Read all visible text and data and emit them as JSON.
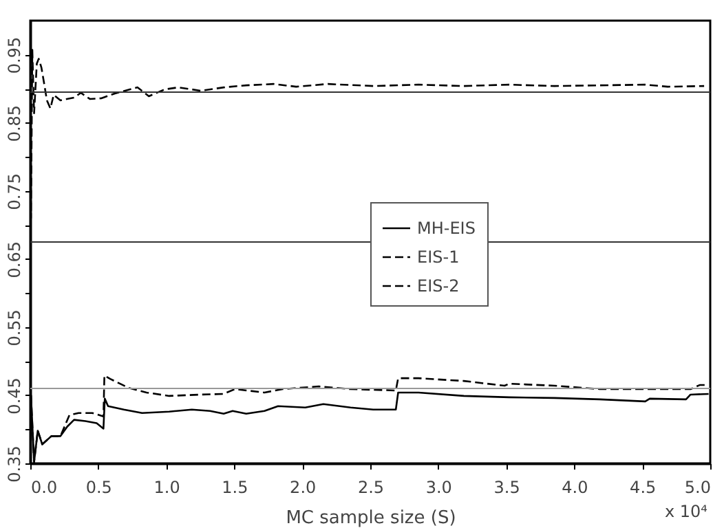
{
  "chart_data": {
    "type": "line",
    "xlabel": "MC sample size (S)",
    "annotations": [
      "x 10⁴"
    ],
    "xlim": [
      0,
      5
    ],
    "ylim": [
      0.35,
      1.0
    ],
    "xticks": [
      {
        "value": 0,
        "label": "0.0"
      },
      0.5,
      {
        "value": 1,
        "label": "1.0"
      },
      1.5,
      {
        "value": 2,
        "label": "2.0"
      },
      2.5,
      {
        "value": 3,
        "label": "3.0"
      },
      3.5,
      {
        "value": 4,
        "label": "4.0"
      },
      4.5,
      {
        "value": 5,
        "label": "5.0"
      }
    ],
    "yticks": [
      0.35,
      {
        "value": 0.4,
        "label": null
      },
      0.45,
      {
        "value": 0.5,
        "label": null
      },
      0.55,
      {
        "value": 0.6,
        "label": null
      },
      0.65,
      {
        "value": 0.7,
        "label": null
      },
      0.75,
      {
        "value": 0.8,
        "label": null
      },
      0.85,
      {
        "value": 0.9,
        "label": null
      },
      0.95
    ],
    "grid": false,
    "legend": "center",
    "marker": "none",
    "ref_lines": [
      {
        "axis": "y",
        "value": 0.895,
        "color": "#333333"
      },
      {
        "axis": "y",
        "value": 0.675,
        "color": "#333333"
      },
      {
        "axis": "y",
        "value": 0.46,
        "color": "#999999"
      }
    ],
    "series": [
      {
        "name": "MH-EIS",
        "color": "#000000",
        "line_style": "solid",
        "x": [
          0.005,
          0.028,
          0.055,
          0.088,
          0.155,
          0.222,
          0.272,
          0.322,
          0.405,
          0.488,
          0.538,
          0.548,
          0.572,
          0.688,
          0.822,
          1.022,
          1.188,
          1.322,
          1.422,
          1.488,
          1.588,
          1.722,
          1.822,
          2.022,
          2.155,
          2.355,
          2.522,
          2.688,
          2.705,
          2.855,
          3.188,
          3.522,
          3.855,
          4.188,
          4.522,
          4.555,
          4.822,
          4.855,
          4.988
        ],
        "values": [
          0.45,
          0.352,
          0.398,
          0.378,
          0.39,
          0.39,
          0.404,
          0.414,
          0.412,
          0.409,
          0.401,
          0.445,
          0.434,
          0.429,
          0.424,
          0.426,
          0.429,
          0.427,
          0.423,
          0.427,
          0.423,
          0.427,
          0.434,
          0.432,
          0.437,
          0.432,
          0.429,
          0.429,
          0.454,
          0.454,
          0.449,
          0.447,
          0.446,
          0.444,
          0.441,
          0.445,
          0.444,
          0.451,
          0.452
        ]
      },
      {
        "name": "EIS-1",
        "color": "#000000",
        "line_style": "dashed",
        "x": [
          0.005,
          0.028,
          0.055,
          0.088,
          0.155,
          0.222,
          0.288,
          0.355,
          0.455,
          0.538,
          0.545,
          0.588,
          0.722,
          0.855,
          1.022,
          1.255,
          1.422,
          1.505,
          1.722,
          1.855,
          2.122,
          2.355,
          2.688,
          2.705,
          2.855,
          3.188,
          3.488,
          3.522,
          3.855,
          4.188,
          4.522,
          4.855,
          4.922,
          4.988
        ],
        "values": [
          0.45,
          0.352,
          0.398,
          0.378,
          0.39,
          0.39,
          0.421,
          0.424,
          0.424,
          0.419,
          0.479,
          0.474,
          0.461,
          0.454,
          0.449,
          0.451,
          0.452,
          0.459,
          0.454,
          0.459,
          0.463,
          0.459,
          0.457,
          0.475,
          0.475,
          0.471,
          0.464,
          0.467,
          0.464,
          0.459,
          0.459,
          0.459,
          0.465,
          0.465
        ]
      },
      {
        "name": "EIS-2",
        "color": "#000000",
        "line_style": "dashed",
        "x": [
          0.002,
          0.005,
          0.015,
          0.028,
          0.048,
          0.062,
          0.082,
          0.105,
          0.122,
          0.148,
          0.172,
          0.222,
          0.322,
          0.372,
          0.438,
          0.522,
          0.622,
          0.788,
          0.872,
          0.988,
          1.088,
          1.255,
          1.422,
          1.588,
          1.788,
          1.955,
          2.188,
          2.522,
          2.855,
          3.188,
          3.522,
          3.855,
          4.188,
          4.522,
          4.688,
          4.955
        ],
        "values": [
          0.99,
          0.71,
          0.957,
          0.864,
          0.937,
          0.944,
          0.931,
          0.904,
          0.883,
          0.871,
          0.891,
          0.883,
          0.887,
          0.894,
          0.885,
          0.886,
          0.893,
          0.902,
          0.889,
          0.899,
          0.902,
          0.897,
          0.902,
          0.905,
          0.907,
          0.903,
          0.907,
          0.904,
          0.906,
          0.904,
          0.906,
          0.904,
          0.905,
          0.906,
          0.903,
          0.904
        ]
      }
    ]
  }
}
